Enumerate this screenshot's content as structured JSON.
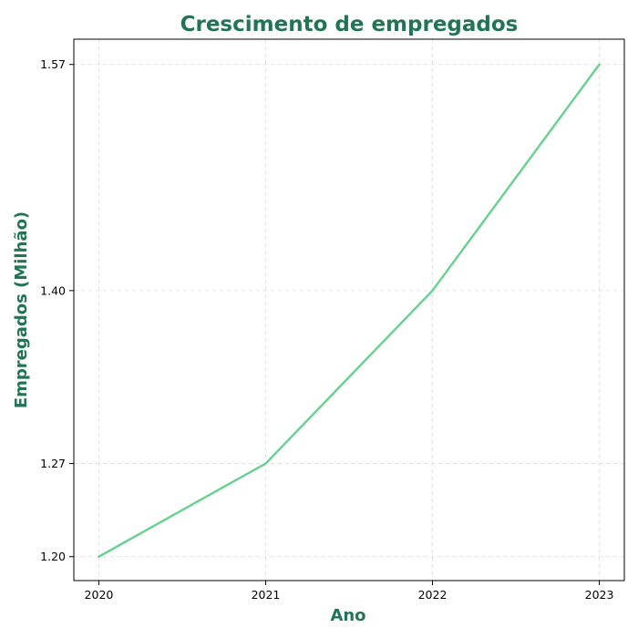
{
  "colors": {
    "title": "#217554",
    "line": "#66d18f"
  },
  "chart_data": {
    "type": "line",
    "title": "Crescimento de empregados",
    "xlabel": "Ano",
    "ylabel": "Empregados (Milhão)",
    "x": [
      "2020",
      "2021",
      "2022",
      "2023"
    ],
    "series": [
      {
        "values": [
          1.2,
          1.27,
          1.4,
          1.57
        ]
      }
    ],
    "yticks": [
      1.2,
      1.27,
      1.4,
      1.57
    ],
    "ytick_labels": [
      "1.20",
      "1.27",
      "1.40",
      "1.57"
    ],
    "xlim": [
      2019.85,
      2023.15
    ],
    "ylim": [
      1.182,
      1.589
    ],
    "grid": true
  }
}
